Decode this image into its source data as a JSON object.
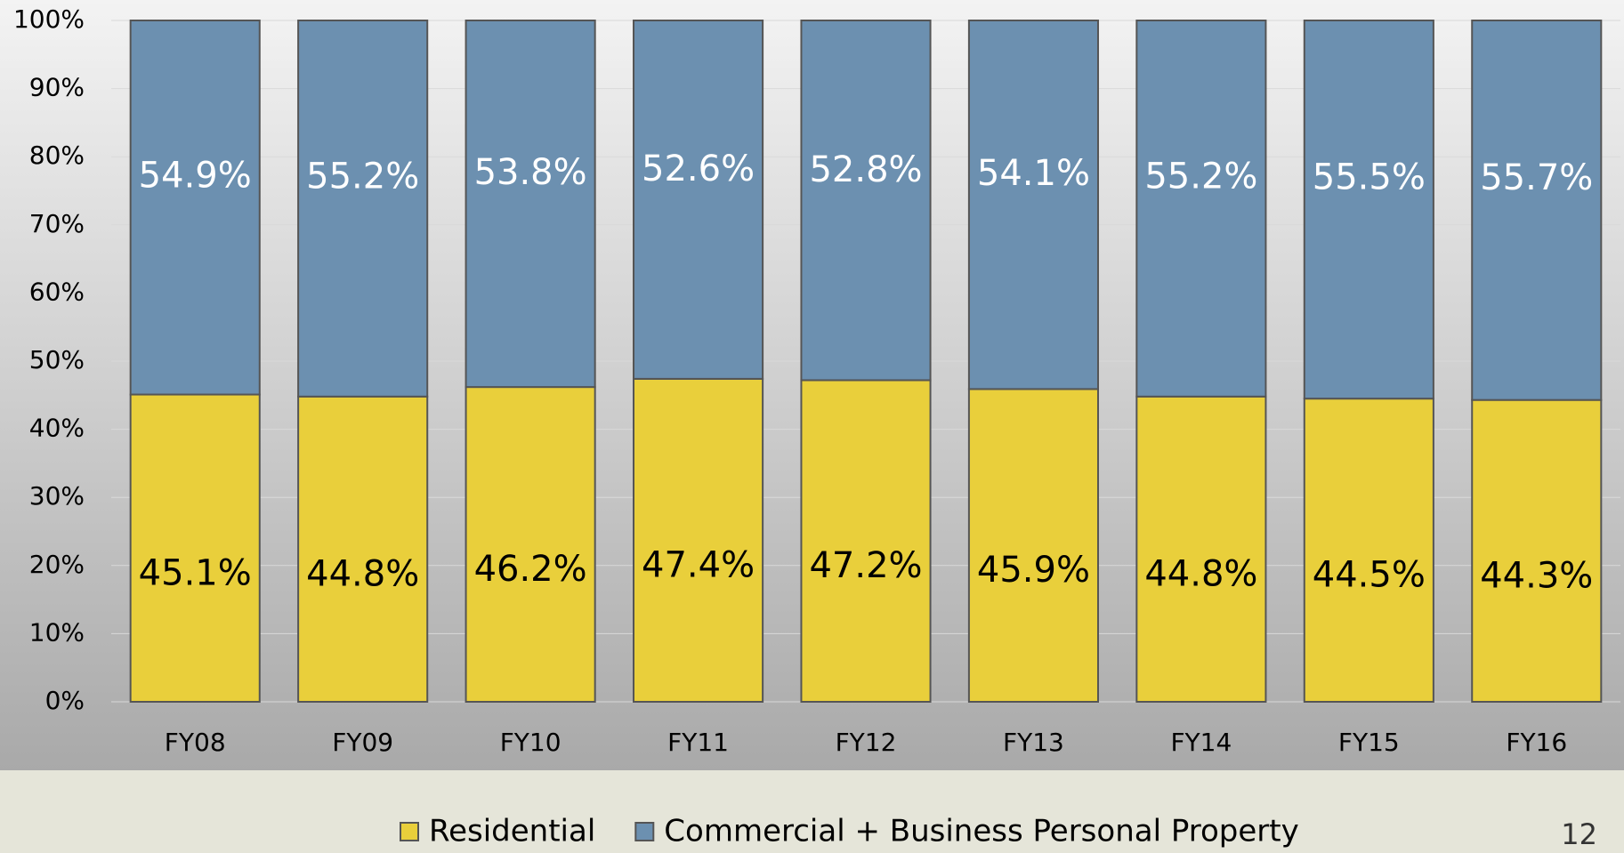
{
  "chart_data": {
    "type": "stacked_bar",
    "categories": [
      "FY08",
      "FY09",
      "FY10",
      "FY11",
      "FY12",
      "FY13",
      "FY14",
      "FY15",
      "FY16"
    ],
    "series": [
      {
        "name": "Residential",
        "color": "#e9cf3b",
        "values": [
          45.1,
          44.8,
          46.2,
          47.4,
          47.2,
          45.9,
          44.8,
          44.5,
          44.3
        ],
        "value_labels": [
          "45.1%",
          "44.8%",
          "46.2%",
          "47.4%",
          "47.2%",
          "45.9%",
          "44.8%",
          "44.5%",
          "44.3%"
        ]
      },
      {
        "name": "Commercial + Business Personal Property",
        "color": "#6c90b0",
        "values": [
          54.9,
          55.2,
          53.8,
          52.6,
          52.8,
          54.1,
          55.2,
          55.5,
          55.7
        ],
        "value_labels": [
          "54.9%",
          "55.2%",
          "53.8%",
          "52.6%",
          "52.8%",
          "54.1%",
          "55.2%",
          "55.5%",
          "55.7%"
        ]
      }
    ],
    "ylim": [
      0,
      100
    ],
    "yticks": [
      {
        "value": 0,
        "label": "0%"
      },
      {
        "value": 10,
        "label": "10%"
      },
      {
        "value": 20,
        "label": "20%"
      },
      {
        "value": 30,
        "label": "30%"
      },
      {
        "value": 40,
        "label": "40%"
      },
      {
        "value": 50,
        "label": "50%"
      },
      {
        "value": 60,
        "label": "60%"
      },
      {
        "value": 70,
        "label": "70%"
      },
      {
        "value": 80,
        "label": "80%"
      },
      {
        "value": 90,
        "label": "90%"
      },
      {
        "value": 100,
        "label": "100%"
      }
    ],
    "grid": true,
    "legend": "bottom"
  },
  "page_number": 12
}
